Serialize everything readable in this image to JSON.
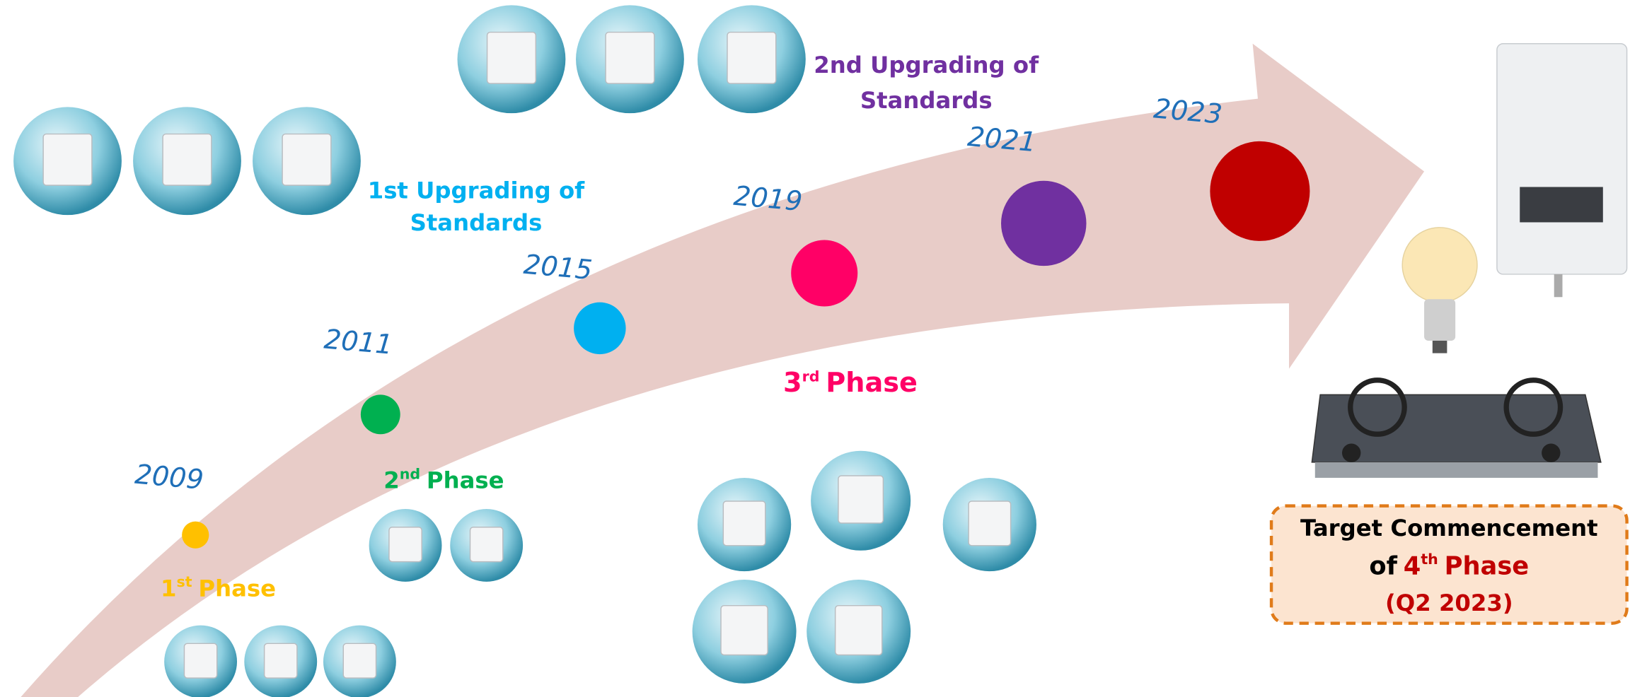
{
  "milestones": [
    "2009",
    "2011",
    "2015",
    "2019",
    "2021",
    "2023"
  ],
  "phases": [
    {
      "number": "1",
      "suffix": "st",
      "label": "Phase"
    },
    {
      "number": "2",
      "suffix": "nd",
      "label": "Phase"
    },
    {
      "number": "3",
      "suffix": "rd",
      "label": "Phase"
    }
  ],
  "upgrades": [
    {
      "lines": [
        "1st Upgrading of",
        "Standards"
      ]
    },
    {
      "lines": [
        "2nd Upgrading of",
        "Standards"
      ]
    }
  ],
  "target": {
    "line1": "Target Commencement",
    "prefix": "of",
    "number": "4",
    "suffix": "th",
    "label": "Phase",
    "date": "(Q2 2023)"
  }
}
